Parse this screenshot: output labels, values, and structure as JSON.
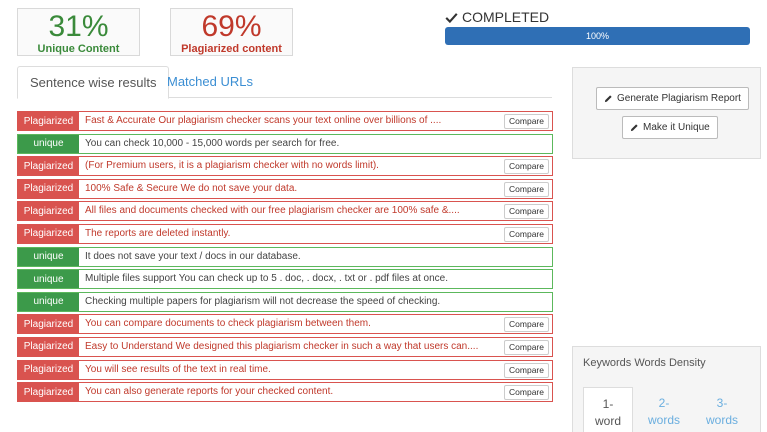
{
  "stats": {
    "unique": {
      "percent": "31%",
      "label": "Unique Content"
    },
    "plagiarized": {
      "percent": "69%",
      "label": "Plagiarized content"
    }
  },
  "status": {
    "label": "COMPLETED",
    "progress_text": "100%",
    "progress_fraction": 1.0
  },
  "tabs": [
    {
      "label": "Sentence wise results",
      "active": true
    },
    {
      "label": "Matched URLs",
      "active": false
    }
  ],
  "compare_label": "Compare",
  "results": [
    {
      "status": "Plagiarized",
      "text": "Fast & Accurate Our plagiarism checker scans your text online over billions of ...."
    },
    {
      "status": "unique",
      "text": "You can check 10,000 - 15,000 words per search for free."
    },
    {
      "status": "Plagiarized",
      "text": "(For Premium users, it is a plagiarism checker with no words limit)."
    },
    {
      "status": "Plagiarized",
      "text": "100% Safe & Secure We do not save your data."
    },
    {
      "status": "Plagiarized",
      "text": "All files and documents checked with our free plagiarism checker are 100% safe &...."
    },
    {
      "status": "Plagiarized",
      "text": "The reports are deleted instantly."
    },
    {
      "status": "unique",
      "text": "It does not save your text / docs in our database."
    },
    {
      "status": "unique",
      "text": "Multiple files support You can check up to 5 . doc, . docx, . txt or . pdf files at once."
    },
    {
      "status": "unique",
      "text": "Checking multiple papers for plagiarism will not decrease the speed of checking."
    },
    {
      "status": "Plagiarized",
      "text": "You can compare documents to check plagiarism between them."
    },
    {
      "status": "Plagiarized",
      "text": "Easy to Understand We designed this plagiarism checker in such a way that users can...."
    },
    {
      "status": "Plagiarized",
      "text": "You will see results of the text in real time."
    },
    {
      "status": "Plagiarized",
      "text": "You can also generate reports for your checked content."
    }
  ],
  "side": {
    "generate_report_label": "Generate Plagiarism Report",
    "make_unique_label": "Make it Unique"
  },
  "keywords": {
    "title": "Keywords Words Density",
    "tabs": [
      {
        "line1": "1-",
        "line2": "word"
      },
      {
        "line1": "2-",
        "line2": "words"
      },
      {
        "line1": "3-",
        "line2": "words"
      }
    ]
  },
  "colors": {
    "plagiarized": "#d9534f",
    "unique": "#3c9a4a",
    "progress": "#2f6fb5",
    "link": "#3b8ed3"
  }
}
